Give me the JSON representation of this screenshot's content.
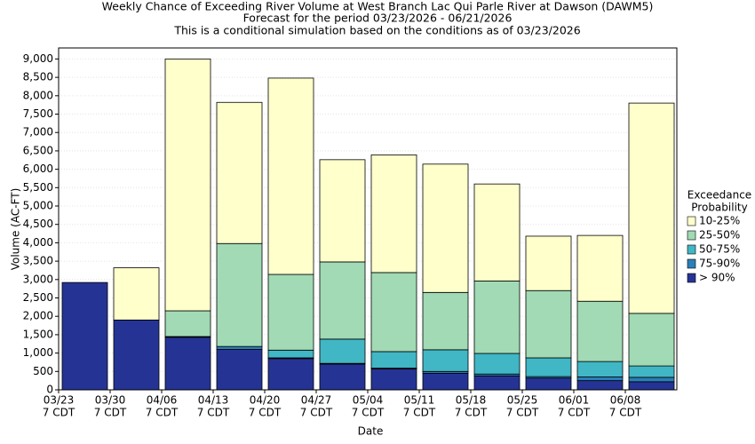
{
  "chart_data": {
    "type": "stacked_bar",
    "title": "Weekly Chance of Exceeding River Volume at West Branch Lac Qui Parle River at Dawson (DAWM5)",
    "subtitle": "Forecast for the period 03/23/2026 - 06/21/2026",
    "note": "This is a conditional simulation based on the conditions as of 03/23/2026",
    "x_label": "Date",
    "y_label": "Volume (AC-FT)",
    "categories": [
      "03/23",
      "03/30",
      "04/06",
      "04/13",
      "04/20",
      "04/27",
      "05/04",
      "05/11",
      "05/18",
      "05/25",
      "06/01",
      "06/08"
    ],
    "category_sublabels": [
      "7 CDT",
      "7 CDT",
      "7 CDT",
      "7 CDT",
      "7 CDT",
      "7 CDT",
      "7 CDT",
      "7 CDT",
      "7 CDT",
      "7 CDT",
      "7 CDT",
      "7 CDT"
    ],
    "legend_title": [
      "Exceedance",
      "Probability"
    ],
    "series": [
      {
        "name": "> 90%",
        "color": "#253494",
        "values": [
          2920,
          1900,
          1430,
          1100,
          850,
          700,
          570,
          450,
          380,
          320,
          250,
          220
        ]
      },
      {
        "name": "75-90%",
        "color": "#2c7fb8",
        "values": [
          0,
          0,
          20,
          80,
          20,
          20,
          20,
          50,
          50,
          40,
          100,
          120
        ]
      },
      {
        "name": "50-75%",
        "color": "#41b6c4",
        "values": [
          0,
          0,
          0,
          0,
          210,
          660,
          450,
          590,
          560,
          510,
          420,
          310
        ]
      },
      {
        "name": "25-50%",
        "color": "#a1dab4",
        "values": [
          0,
          0,
          700,
          2800,
          2060,
          2100,
          2150,
          1560,
          1970,
          1830,
          1640,
          1430
        ]
      },
      {
        "name": "10-25%",
        "color": "#ffffcc",
        "values": [
          0,
          1420,
          6850,
          3840,
          5340,
          2780,
          3200,
          3490,
          2640,
          1480,
          1790,
          5720
        ]
      }
    ],
    "ylim": [
      0,
      9300
    ],
    "yticks": [
      0,
      500,
      {
        "value": 1000,
        "label": "1,000"
      },
      {
        "value": 1500,
        "label": "1,500"
      },
      {
        "value": 2000,
        "label": "2,000"
      },
      {
        "value": 2500,
        "label": "2,500"
      },
      {
        "value": 3000,
        "label": "3,000"
      },
      {
        "value": 3500,
        "label": "3,500"
      },
      {
        "value": 4000,
        "label": "4,000"
      },
      {
        "value": 4500,
        "label": "4,500"
      },
      {
        "value": 5000,
        "label": "5,000"
      },
      {
        "value": 5500,
        "label": "5,500"
      },
      {
        "value": 6000,
        "label": "6,000"
      },
      {
        "value": 6500,
        "label": "6,500"
      },
      {
        "value": 7000,
        "label": "7,000"
      },
      {
        "value": 7500,
        "label": "7,500"
      },
      {
        "value": 8000,
        "label": "8,000"
      },
      {
        "value": 8500,
        "label": "8,500"
      },
      {
        "value": 9000,
        "label": "9,000"
      }
    ],
    "grid": true,
    "legend": "right"
  }
}
